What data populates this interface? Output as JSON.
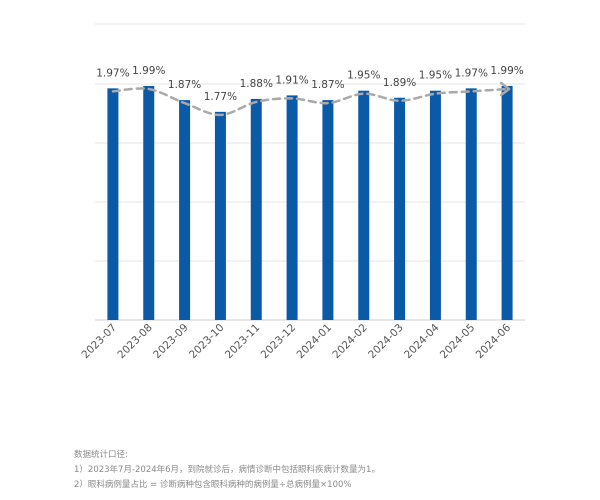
{
  "chart_data": {
    "type": "bar",
    "categories": [
      "2023-07",
      "2023-08",
      "2023-09",
      "2023-10",
      "2023-11",
      "2023-12",
      "2024-01",
      "2024-02",
      "2024-03",
      "2024-04",
      "2024-05",
      "2024-06"
    ],
    "values": [
      1.97,
      1.99,
      1.87,
      1.77,
      1.88,
      1.91,
      1.87,
      1.95,
      1.89,
      1.95,
      1.97,
      1.99
    ],
    "data_labels": [
      "1.97%",
      "1.99%",
      "1.87%",
      "1.77%",
      "1.88%",
      "1.91%",
      "1.87%",
      "1.95%",
      "1.89%",
      "1.95%",
      "1.97%",
      "1.99%"
    ],
    "trend_line": "dashed-arrow",
    "grid": true,
    "bar_color": "#0b5aa8",
    "trend_color": "#a9a9a9"
  },
  "notes": {
    "heading": "数据统计口径:",
    "line1": "1）2023年7月-2024年6月，到院就诊后，病情诊断中包括眼科疾病计数量为1。",
    "line2": "2）眼科病例量占比 = 诊断病种包含眼科病种的病例量÷总病例量×100%"
  }
}
